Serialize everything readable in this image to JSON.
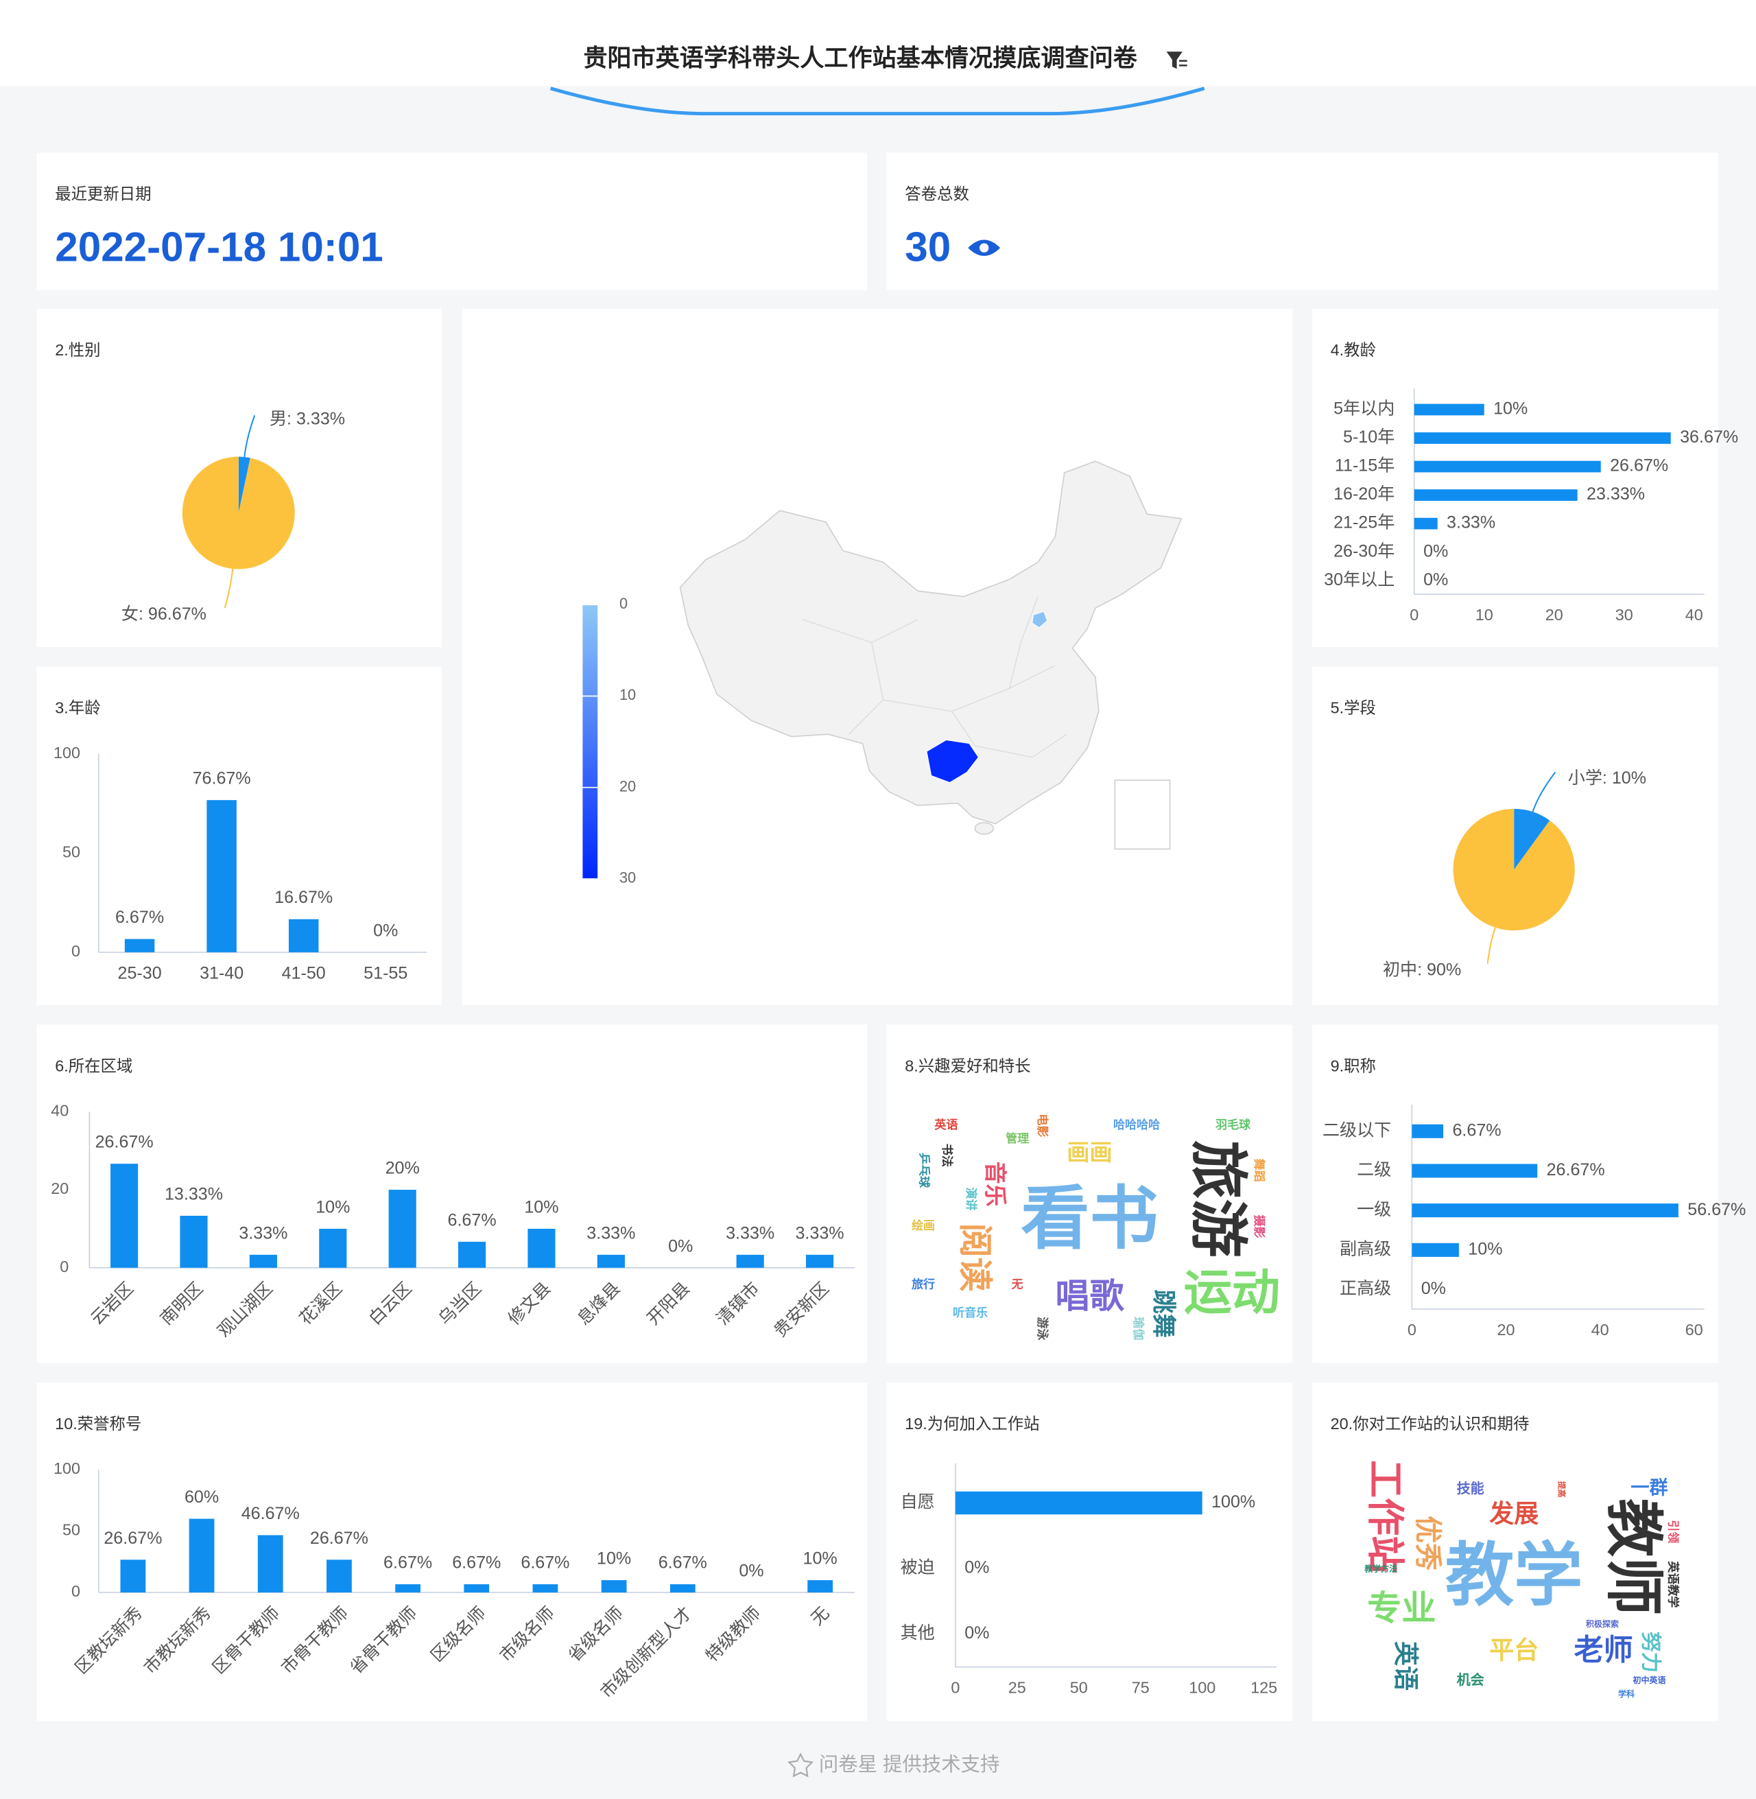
{
  "header": {
    "title": "贵阳市英语学科带头人工作站基本情况摸底调查问卷"
  },
  "stats": [
    {
      "label": "最近更新日期",
      "value": "2022-07-18 10:01"
    },
    {
      "label": "答卷总数",
      "value": 30
    }
  ],
  "chart_data": [
    {
      "type": "pie",
      "title": "2.性别",
      "values": [
        3.33,
        96.67
      ],
      "value_labels": [
        "男: 3.33%",
        "女: 96.67%"
      ],
      "colors": [
        "#1890f0",
        "#fcc23e"
      ]
    },
    {
      "type": "bar",
      "title": "3.年龄",
      "categories": [
        "25-30",
        "31-40",
        "41-50",
        "51-55"
      ],
      "values": [
        6.67,
        76.67,
        16.67,
        0
      ],
      "value_labels": [
        "6.67%",
        "76.67%",
        "16.67%",
        "0%"
      ],
      "color": "#0f8ef0",
      "ylim": [
        0,
        100
      ],
      "yticks": [
        0,
        50,
        100
      ]
    },
    {
      "type": "map",
      "values": [
        29,
        1
      ],
      "vlim": [
        0,
        30
      ],
      "vticks": [
        0,
        10,
        20,
        30
      ],
      "colors": [
        "#8ec8f6",
        "#0026ff"
      ]
    },
    {
      "type": "hbar",
      "title": "4.教龄",
      "categories": [
        "5年以内",
        "5-10年",
        "11-15年",
        "16-20年",
        "21-25年",
        "26-30年",
        "30年以上"
      ],
      "values": [
        10,
        36.67,
        26.67,
        23.33,
        3.33,
        0,
        0
      ],
      "value_labels": [
        "10%",
        "36.67%",
        "26.67%",
        "23.33%",
        "3.33%",
        "0%",
        "0%"
      ],
      "color": "#0f8ef0",
      "xlim": [
        0,
        40
      ],
      "xticks": [
        0,
        10,
        20,
        30,
        40
      ]
    },
    {
      "type": "pie",
      "title": "5.学段",
      "values": [
        10,
        90
      ],
      "value_labels": [
        "小学: 10%",
        "初中: 90%"
      ],
      "colors": [
        "#1890f0",
        "#fcc23e"
      ]
    },
    {
      "type": "bar",
      "title": "6.所在区域",
      "categories": [
        "云岩区",
        "南明区",
        "观山湖区",
        "花溪区",
        "白云区",
        "乌当区",
        "修文县",
        "息烽县",
        "开阳县",
        "清镇市",
        "贵安新区"
      ],
      "values": [
        26.67,
        13.33,
        3.33,
        10,
        20,
        6.67,
        10,
        3.33,
        0,
        3.33,
        3.33
      ],
      "value_labels": [
        "26.67%",
        "13.33%",
        "3.33%",
        "10%",
        "20%",
        "6.67%",
        "10%",
        "3.33%",
        "0%",
        "3.33%",
        "3.33%"
      ],
      "color": "#0f8ef0",
      "ylim": [
        0,
        40
      ],
      "yticks": [
        0,
        20,
        40
      ]
    },
    {
      "type": "wordcloud",
      "title": "8.兴趣爱好和特长",
      "words": [
        {
          "text": "看书",
          "value": 10,
          "color": "#72b4ea"
        },
        {
          "text": "旅游",
          "value": 8.5,
          "color": "#333333"
        },
        {
          "text": "运动",
          "value": 7,
          "color": "#7ddc6e"
        },
        {
          "text": "唱歌",
          "value": 5,
          "color": "#7b68d6"
        },
        {
          "text": "阅读",
          "value": 5,
          "color": "#f0a35a"
        },
        {
          "text": "跳舞",
          "value": 3.5,
          "color": "#2a7f8f"
        },
        {
          "text": "音乐",
          "value": 3.3,
          "color": "#e8506a"
        },
        {
          "text": "画画",
          "value": 3.3,
          "color": "#f0d050"
        },
        {
          "text": "英语",
          "value": 1.7,
          "color": "#e0443a"
        },
        {
          "text": "书法",
          "value": 1.7,
          "color": "#333333"
        },
        {
          "text": "电影",
          "value": 1.7,
          "color": "#e87a3a"
        },
        {
          "text": "管理",
          "value": 1.7,
          "color": "#7dc46a"
        },
        {
          "text": "哈哈哈哈",
          "value": 1.7,
          "color": "#5aa0e8"
        },
        {
          "text": "羽毛球",
          "value": 1.7,
          "color": "#5fc46a"
        },
        {
          "text": "乒乓球",
          "value": 1.7,
          "color": "#2a8fa0"
        },
        {
          "text": "演讲",
          "value": 1.7,
          "color": "#59c2c8"
        },
        {
          "text": "绘画",
          "value": 1.7,
          "color": "#e8c040"
        },
        {
          "text": "旅行",
          "value": 1.7,
          "color": "#3a7ee0"
        },
        {
          "text": "无",
          "value": 1.7,
          "color": "#e05050"
        },
        {
          "text": "听音乐",
          "value": 1.7,
          "color": "#5ab8e8"
        },
        {
          "text": "游泳",
          "value": 1.7,
          "color": "#555555"
        },
        {
          "text": "摄影",
          "value": 1.7,
          "color": "#e05080"
        },
        {
          "text": "舞蹈",
          "value": 1.7,
          "color": "#f0a040"
        },
        {
          "text": "瑜伽",
          "value": 1.7,
          "color": "#8ed0d0"
        }
      ]
    },
    {
      "type": "hbar",
      "title": "9.职称",
      "categories": [
        "二级以下",
        "二级",
        "一级",
        "副高级",
        "正高级"
      ],
      "values": [
        6.67,
        26.67,
        56.67,
        10,
        0
      ],
      "value_labels": [
        "6.67%",
        "26.67%",
        "56.67%",
        "10%",
        "0%"
      ],
      "color": "#0f8ef0",
      "xlim": [
        0,
        60
      ],
      "xticks": [
        0,
        20,
        40,
        60
      ]
    },
    {
      "type": "bar",
      "title": "10.荣誉称号",
      "categories": [
        "区教坛新秀",
        "市教坛新秀",
        "区骨干教师",
        "市骨干教师",
        "省骨干教师",
        "区级名师",
        "市级名师",
        "省级名师",
        "市级创新型人才",
        "特级教师",
        "无"
      ],
      "values": [
        26.67,
        60,
        46.67,
        26.67,
        6.67,
        6.67,
        6.67,
        10,
        6.67,
        0,
        10
      ],
      "value_labels": [
        "26.67%",
        "60%",
        "46.67%",
        "26.67%",
        "6.67%",
        "6.67%",
        "6.67%",
        "10%",
        "6.67%",
        "0%",
        "10%"
      ],
      "color": "#0f8ef0",
      "ylim": [
        0,
        100
      ],
      "yticks": [
        0,
        50,
        100
      ]
    },
    {
      "type": "hbar",
      "title": "19.为何加入工作站",
      "categories": [
        "自愿",
        "被迫",
        "其他"
      ],
      "values": [
        100,
        0,
        0
      ],
      "value_labels": [
        "100%",
        "0%",
        "0%"
      ],
      "color": "#0f8ef0",
      "xlim": [
        0,
        125
      ],
      "xticks": [
        0,
        25,
        50,
        75,
        100,
        125
      ]
    },
    {
      "type": "wordcloud",
      "title": "20.你对工作站的认识和期待",
      "words": [
        {
          "text": "教学",
          "value": 10,
          "color": "#72b4ea"
        },
        {
          "text": "教师",
          "value": 8.5,
          "color": "#333333"
        },
        {
          "text": "工作站",
          "value": 5.5,
          "color": "#e8506a"
        },
        {
          "text": "专业",
          "value": 5,
          "color": "#7ddc6e"
        },
        {
          "text": "优秀",
          "value": 4,
          "color": "#f0a35a"
        },
        {
          "text": "发展",
          "value": 3.6,
          "color": "#e05040"
        },
        {
          "text": "平台",
          "value": 3.6,
          "color": "#f0d050"
        },
        {
          "text": "老师",
          "value": 4.3,
          "color": "#3a60d0"
        },
        {
          "text": "英语",
          "value": 3.6,
          "color": "#2a7f8f"
        },
        {
          "text": "努力",
          "value": 3,
          "color": "#59c2c8"
        },
        {
          "text": "一群",
          "value": 2.7,
          "color": "#3a7ee0"
        },
        {
          "text": "技能",
          "value": 2,
          "color": "#5a6ad0"
        },
        {
          "text": "机会",
          "value": 2,
          "color": "#2a8f70"
        },
        {
          "text": "引领",
          "value": 1.7,
          "color": "#e8506a"
        },
        {
          "text": "英语教学",
          "value": 1.7,
          "color": "#333333"
        },
        {
          "text": "教学方法",
          "value": 1.2,
          "color": "#2a8f70"
        },
        {
          "text": "积极探索",
          "value": 1.2,
          "color": "#5a6ad0"
        },
        {
          "text": "学科",
          "value": 1.2,
          "color": "#3a7ee0"
        },
        {
          "text": "初中英语",
          "value": 1.2,
          "color": "#3a60d0"
        },
        {
          "text": "提高",
          "value": 1.2,
          "color": "#e05040"
        }
      ]
    }
  ],
  "footer": {
    "text": "问卷星 提供技术支持"
  }
}
